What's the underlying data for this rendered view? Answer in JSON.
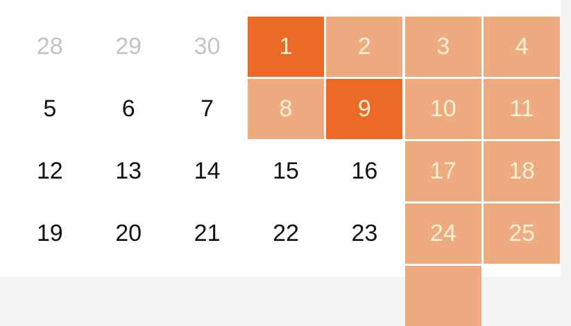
{
  "calendar": {
    "colors": {
      "range": "#eeab7f",
      "selected": "#ec6a26",
      "range_text": "#fdf0d6",
      "outside_month": "#c3c3c3"
    },
    "weeks": [
      [
        {
          "day": "28",
          "state": "outside"
        },
        {
          "day": "29",
          "state": "outside"
        },
        {
          "day": "30",
          "state": "outside"
        },
        {
          "day": "1",
          "state": "selected"
        },
        {
          "day": "2",
          "state": "range"
        },
        {
          "day": "3",
          "state": "range"
        },
        {
          "day": "4",
          "state": "range"
        }
      ],
      [
        {
          "day": "5"
        },
        {
          "day": "6"
        },
        {
          "day": "7"
        },
        {
          "day": "8",
          "state": "range"
        },
        {
          "day": "9",
          "state": "selected"
        },
        {
          "day": "10",
          "state": "range"
        },
        {
          "day": "11",
          "state": "range"
        }
      ],
      [
        {
          "day": "12"
        },
        {
          "day": "13"
        },
        {
          "day": "14"
        },
        {
          "day": "15"
        },
        {
          "day": "16"
        },
        {
          "day": "17",
          "state": "range"
        },
        {
          "day": "18",
          "state": "range"
        }
      ],
      [
        {
          "day": "19"
        },
        {
          "day": "20"
        },
        {
          "day": "21"
        },
        {
          "day": "22"
        },
        {
          "day": "23"
        },
        {
          "day": "24",
          "state": "range"
        },
        {
          "day": "25",
          "state": "range"
        }
      ],
      [
        null,
        null,
        null,
        null,
        null,
        {
          "day": "",
          "state": "range"
        },
        null
      ]
    ]
  }
}
